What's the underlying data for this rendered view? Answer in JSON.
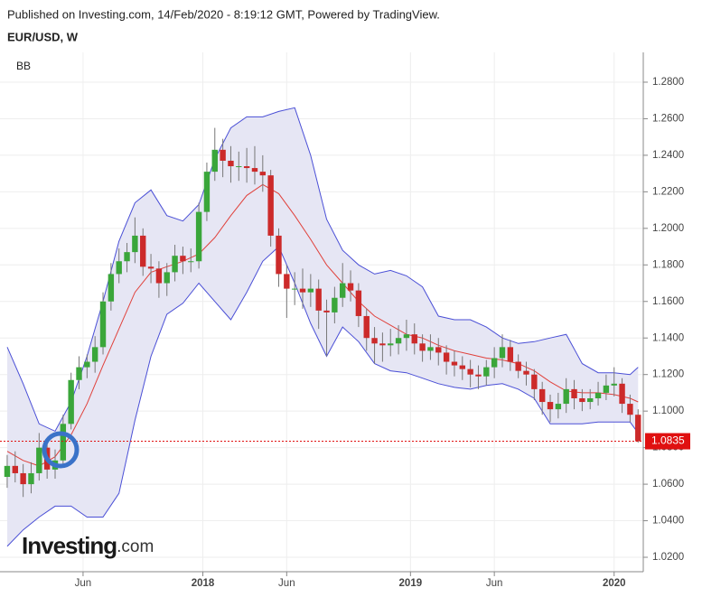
{
  "chart_data": {
    "type": "candlestick",
    "published": "Published on Investing.com, 14/Feb/2020 - 8:19:12 GMT, Powered by TradingView.",
    "title": "EUR/USD, W",
    "indicator": "BB",
    "logo": "Investing",
    "logo_suffix": ".com",
    "up_color": "#3aa63a",
    "down_color": "#cc2a2a",
    "x": [
      0,
      2,
      4,
      6,
      8,
      10,
      12,
      14,
      16,
      18,
      20,
      22,
      24,
      26,
      28,
      30,
      32,
      34,
      36,
      38,
      40,
      42,
      44,
      46,
      48,
      50,
      52,
      54,
      56,
      58,
      60,
      62,
      64,
      66,
      68,
      70,
      72,
      74,
      76,
      78,
      80,
      82,
      84,
      86,
      88,
      90,
      92,
      94,
      96,
      98,
      100,
      102,
      104,
      106,
      108,
      110,
      112,
      114,
      116,
      118,
      120,
      122,
      124,
      126,
      128,
      130,
      132,
      134,
      136,
      138,
      140,
      142,
      144,
      146,
      148,
      150,
      152,
      154,
      156,
      158
    ],
    "open": [
      1.064,
      1.07,
      1.066,
      1.06,
      1.066,
      1.08,
      1.068,
      1.073,
      1.093,
      1.117,
      1.124,
      1.127,
      1.135,
      1.16,
      1.175,
      1.182,
      1.187,
      1.196,
      1.179,
      1.178,
      1.17,
      1.176,
      1.185,
      1.182,
      1.182,
      1.209,
      1.231,
      1.243,
      1.237,
      1.234,
      1.234,
      1.233,
      1.231,
      1.229,
      1.196,
      1.175,
      1.167,
      1.167,
      1.165,
      1.167,
      1.155,
      1.154,
      1.162,
      1.17,
      1.166,
      1.152,
      1.14,
      1.137,
      1.136,
      1.137,
      1.14,
      1.142,
      1.137,
      1.133,
      1.135,
      1.132,
      1.127,
      1.125,
      1.123,
      1.12,
      1.119,
      1.124,
      1.129,
      1.135,
      1.127,
      1.122,
      1.12,
      1.112,
      1.105,
      1.101,
      1.104,
      1.112,
      1.107,
      1.105,
      1.107,
      1.11,
      1.114,
      1.115,
      1.104,
      1.098
    ],
    "high": [
      1.076,
      1.078,
      1.071,
      1.072,
      1.088,
      1.083,
      1.079,
      1.098,
      1.121,
      1.13,
      1.131,
      1.141,
      1.165,
      1.181,
      1.189,
      1.192,
      1.206,
      1.2,
      1.186,
      1.182,
      1.181,
      1.191,
      1.19,
      1.189,
      1.214,
      1.236,
      1.255,
      1.249,
      1.245,
      1.242,
      1.244,
      1.245,
      1.24,
      1.232,
      1.2,
      1.18,
      1.176,
      1.178,
      1.175,
      1.172,
      1.161,
      1.168,
      1.181,
      1.177,
      1.17,
      1.156,
      1.146,
      1.143,
      1.145,
      1.147,
      1.15,
      1.148,
      1.142,
      1.142,
      1.14,
      1.136,
      1.133,
      1.13,
      1.128,
      1.125,
      1.128,
      1.135,
      1.142,
      1.139,
      1.131,
      1.127,
      1.123,
      1.116,
      1.109,
      1.11,
      1.118,
      1.117,
      1.112,
      1.112,
      1.116,
      1.12,
      1.124,
      1.118,
      1.109,
      1.101
    ],
    "low": [
      1.058,
      1.061,
      1.053,
      1.055,
      1.062,
      1.063,
      1.063,
      1.07,
      1.09,
      1.112,
      1.118,
      1.121,
      1.131,
      1.155,
      1.17,
      1.176,
      1.181,
      1.174,
      1.17,
      1.162,
      1.163,
      1.171,
      1.175,
      1.176,
      1.178,
      1.204,
      1.226,
      1.228,
      1.225,
      1.226,
      1.225,
      1.224,
      1.22,
      1.19,
      1.168,
      1.151,
      1.158,
      1.156,
      1.157,
      1.145,
      1.13,
      1.148,
      1.157,
      1.16,
      1.146,
      1.133,
      1.126,
      1.127,
      1.13,
      1.131,
      1.133,
      1.131,
      1.127,
      1.128,
      1.125,
      1.12,
      1.119,
      1.117,
      1.113,
      1.112,
      1.114,
      1.118,
      1.124,
      1.122,
      1.118,
      1.114,
      1.106,
      1.098,
      1.094,
      1.096,
      1.099,
      1.101,
      1.1,
      1.101,
      1.103,
      1.106,
      1.108,
      1.099,
      1.094,
      1.0827
    ],
    "close": [
      1.07,
      1.066,
      1.06,
      1.066,
      1.08,
      1.068,
      1.073,
      1.093,
      1.117,
      1.124,
      1.127,
      1.135,
      1.16,
      1.175,
      1.182,
      1.187,
      1.196,
      1.179,
      1.178,
      1.17,
      1.176,
      1.185,
      1.182,
      1.182,
      1.209,
      1.231,
      1.243,
      1.237,
      1.234,
      1.234,
      1.233,
      1.231,
      1.229,
      1.196,
      1.175,
      1.167,
      1.167,
      1.165,
      1.167,
      1.155,
      1.154,
      1.162,
      1.17,
      1.166,
      1.152,
      1.14,
      1.137,
      1.136,
      1.137,
      1.14,
      1.142,
      1.137,
      1.133,
      1.135,
      1.132,
      1.127,
      1.125,
      1.123,
      1.12,
      1.119,
      1.124,
      1.129,
      1.135,
      1.127,
      1.122,
      1.12,
      1.112,
      1.105,
      1.101,
      1.104,
      1.112,
      1.107,
      1.105,
      1.107,
      1.11,
      1.114,
      1.115,
      1.104,
      1.098,
      1.0835
    ],
    "bands": {
      "x": [
        0,
        4,
        8,
        12,
        16,
        20,
        24,
        28,
        32,
        36,
        40,
        44,
        48,
        52,
        56,
        60,
        64,
        68,
        72,
        76,
        80,
        84,
        88,
        92,
        96,
        100,
        104,
        108,
        112,
        116,
        120,
        124,
        128,
        132,
        136,
        140,
        144,
        148,
        152,
        156,
        158
      ],
      "upper": [
        1.135,
        1.115,
        1.093,
        1.089,
        1.105,
        1.13,
        1.16,
        1.193,
        1.214,
        1.221,
        1.207,
        1.204,
        1.213,
        1.238,
        1.255,
        1.261,
        1.261,
        1.264,
        1.266,
        1.24,
        1.205,
        1.188,
        1.18,
        1.175,
        1.177,
        1.174,
        1.168,
        1.152,
        1.15,
        1.15,
        1.146,
        1.14,
        1.137,
        1.138,
        1.14,
        1.142,
        1.126,
        1.121,
        1.121,
        1.12,
        1.124
      ],
      "middle": [
        1.078,
        1.073,
        1.07,
        1.075,
        1.087,
        1.104,
        1.125,
        1.145,
        1.165,
        1.176,
        1.179,
        1.182,
        1.186,
        1.195,
        1.207,
        1.218,
        1.224,
        1.219,
        1.207,
        1.194,
        1.18,
        1.17,
        1.16,
        1.152,
        1.147,
        1.142,
        1.14,
        1.136,
        1.133,
        1.131,
        1.129,
        1.128,
        1.126,
        1.122,
        1.116,
        1.111,
        1.11,
        1.11,
        1.109,
        1.107,
        1.105
      ],
      "lower": [
        1.026,
        1.035,
        1.042,
        1.048,
        1.048,
        1.042,
        1.042,
        1.055,
        1.095,
        1.13,
        1.153,
        1.159,
        1.17,
        1.16,
        1.15,
        1.165,
        1.182,
        1.19,
        1.17,
        1.148,
        1.13,
        1.146,
        1.138,
        1.126,
        1.122,
        1.121,
        1.118,
        1.115,
        1.113,
        1.112,
        1.114,
        1.115,
        1.112,
        1.107,
        1.093,
        1.093,
        1.093,
        1.094,
        1.094,
        1.094,
        1.088
      ],
      "band_color": "#4a4fd6",
      "fill_color": "#e6e6f4",
      "middle_color": "#e0413b"
    },
    "xlim": [
      -1.8,
      159.3
    ],
    "xticks": [
      {
        "value": 19,
        "label": "Jun"
      },
      {
        "value": 49,
        "label": "2018"
      },
      {
        "value": 70,
        "label": "Jun"
      },
      {
        "value": 101,
        "label": "2019"
      },
      {
        "value": 122,
        "label": "Jun"
      },
      {
        "value": 152,
        "label": "2020"
      }
    ],
    "ylim": [
      1.0121,
      1.2963
    ],
    "yticks": [
      {
        "value": 1.02,
        "label": "1.0200"
      },
      {
        "value": 1.04,
        "label": "1.0400"
      },
      {
        "value": 1.06,
        "label": "1.0600"
      },
      {
        "value": 1.08,
        "label": "1.0800"
      },
      {
        "value": 1.1,
        "label": "1.1000"
      },
      {
        "value": 1.12,
        "label": "1.1200"
      },
      {
        "value": 1.14,
        "label": "1.1400"
      },
      {
        "value": 1.16,
        "label": "1.1600"
      },
      {
        "value": 1.18,
        "label": "1.1800"
      },
      {
        "value": 1.2,
        "label": "1.2000"
      },
      {
        "value": 1.22,
        "label": "1.2200"
      },
      {
        "value": 1.24,
        "label": "1.2400"
      },
      {
        "value": 1.26,
        "label": "1.2600"
      },
      {
        "value": 1.28,
        "label": "1.2800"
      }
    ],
    "last_price": 1.0835,
    "last_color": "#e01010",
    "grid": true
  }
}
